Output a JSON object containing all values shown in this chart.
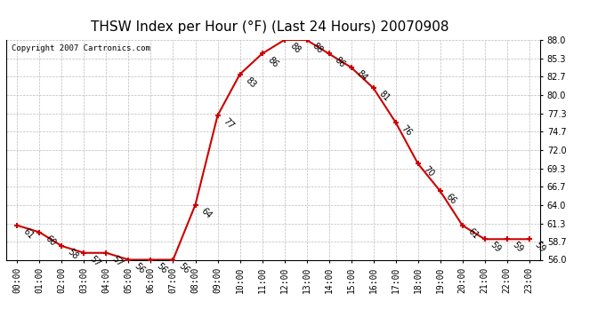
{
  "title": "THSW Index per Hour (°F) (Last 24 Hours) 20070908",
  "copyright": "Copyright 2007 Cartronics.com",
  "hours": [
    0,
    1,
    2,
    3,
    4,
    5,
    6,
    7,
    8,
    9,
    10,
    11,
    12,
    13,
    14,
    15,
    16,
    17,
    18,
    19,
    20,
    21,
    22,
    23
  ],
  "values": [
    61,
    60,
    58,
    57,
    57,
    56,
    56,
    56,
    64,
    77,
    83,
    86,
    88,
    88,
    86,
    84,
    81,
    76,
    70,
    66,
    61,
    59,
    59,
    59
  ],
  "ylim": [
    56.0,
    88.0
  ],
  "yticks": [
    56.0,
    58.7,
    61.3,
    64.0,
    66.7,
    69.3,
    72.0,
    74.7,
    77.3,
    80.0,
    82.7,
    85.3,
    88.0
  ],
  "line_color": "#cc0000",
  "marker_color": "#cc0000",
  "bg_color": "#ffffff",
  "grid_color": "#bbbbbb",
  "title_fontsize": 11,
  "label_fontsize": 7,
  "tick_fontsize": 7,
  "copyright_fontsize": 6.5
}
